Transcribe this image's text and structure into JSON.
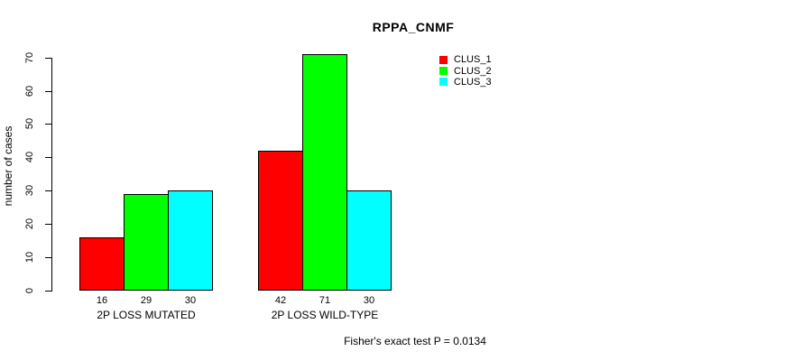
{
  "chart_data": {
    "type": "bar",
    "title": "RPPA_CNMF",
    "xlabel": "",
    "ylabel": "number of cases",
    "ylim": [
      0,
      70
    ],
    "yticks": [
      0,
      10,
      20,
      30,
      40,
      50,
      60,
      70
    ],
    "grid": false,
    "legend_position": "top-right",
    "categories": [
      "2P LOSS MUTATED",
      "2P LOSS WILD-TYPE"
    ],
    "series": [
      {
        "name": "CLUS_1",
        "color": "#ff0000",
        "values": [
          16,
          42
        ]
      },
      {
        "name": "CLUS_2",
        "color": "#00ff00",
        "values": [
          29,
          71
        ]
      },
      {
        "name": "CLUS_3",
        "color": "#00ffff",
        "values": [
          30,
          30
        ]
      }
    ],
    "bar_value_labels_shown": true,
    "annotation": "Fisher's exact test P = 0.0134",
    "colors": {
      "background": "#ffffff",
      "axis": "#000000",
      "text": "#000000"
    }
  }
}
